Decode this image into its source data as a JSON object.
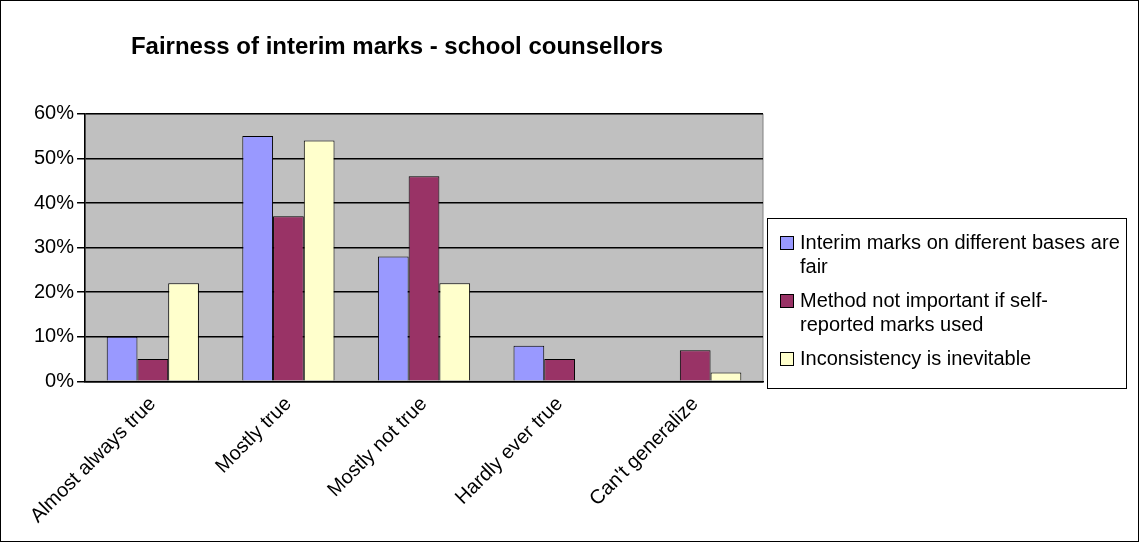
{
  "chart_data": {
    "type": "bar",
    "title": "Fairness of interim marks - school counsellors",
    "categories": [
      "Almost always true",
      "Mostly true",
      "Mostly not true",
      "Hardly ever true",
      "Can't generalize"
    ],
    "series": [
      {
        "name": "Interim marks on different bases are fair",
        "color": "#9999ff",
        "values": [
          10,
          55,
          28,
          8,
          0
        ]
      },
      {
        "name": "Method not important if self-reported marks used",
        "color": "#993366",
        "values": [
          5,
          37,
          46,
          5,
          7
        ]
      },
      {
        "name": "Inconsistency is inevitable",
        "color": "#ffffcc",
        "values": [
          22,
          54,
          22,
          0,
          2
        ]
      }
    ],
    "ylim": [
      0,
      60
    ],
    "yticks": [
      {
        "value": 0,
        "label": "0%"
      },
      {
        "value": 10,
        "label": "10%"
      },
      {
        "value": 20,
        "label": "20%"
      },
      {
        "value": 30,
        "label": "30%"
      },
      {
        "value": 40,
        "label": "40%"
      },
      {
        "value": 50,
        "label": "50%"
      },
      {
        "value": 60,
        "label": "60%"
      }
    ],
    "grid": "y",
    "legend": "right"
  }
}
